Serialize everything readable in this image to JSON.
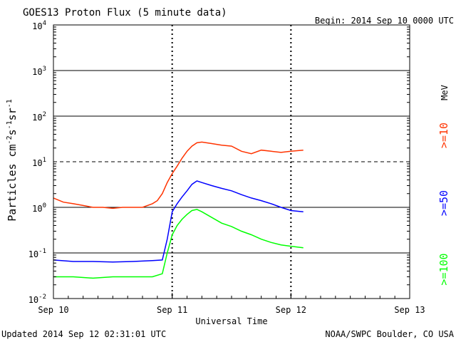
{
  "header": {
    "title": "GOES13 Proton Flux (5 minute data)",
    "begin": "Begin: 2014 Sep 10 0000 UTC"
  },
  "footer": {
    "updated": "Updated 2014 Sep 12 02:31:01 UTC",
    "source": "NOAA/SWPC Boulder, CO USA"
  },
  "colors": {
    "ge10": "#ff3300",
    "ge50": "#0000ff",
    "ge100": "#00ff00",
    "axis": "#000000"
  },
  "chart_data": {
    "type": "line",
    "title": "GOES13 Proton Flux (5 minute data)",
    "xlabel": "Universal Time",
    "ylabel": "Particles cm-2 s-1 sr-1",
    "y_scale": "log",
    "ylim": [
      0.01,
      10000
    ],
    "y_ticks": [
      {
        "value": 0.01,
        "base": "10",
        "exp": "-2"
      },
      {
        "value": 0.1,
        "base": "10",
        "exp": "-1"
      },
      {
        "value": 1,
        "base": "10",
        "exp": "0"
      },
      {
        "value": 10,
        "base": "10",
        "exp": "1"
      },
      {
        "value": 100,
        "base": "10",
        "exp": "2"
      },
      {
        "value": 1000,
        "base": "10",
        "exp": "3"
      },
      {
        "value": 10000,
        "base": "10",
        "exp": "4"
      }
    ],
    "xlim": [
      "2014-09-10 00:00",
      "2014-09-13 00:00"
    ],
    "x_ticks": [
      "Sep 10",
      "Sep 11",
      "Sep 12",
      "Sep 13"
    ],
    "energy_unit": "MeV",
    "series_labels": [
      ">=10",
      ">=50",
      ">=100"
    ],
    "series": [
      {
        "name": ">=10",
        "color": "#ff3300",
        "points": [
          [
            "2014-09-10 00:00",
            1.6
          ],
          [
            "2014-09-10 02:00",
            1.3
          ],
          [
            "2014-09-10 04:00",
            1.2
          ],
          [
            "2014-09-10 06:00",
            1.1
          ],
          [
            "2014-09-10 08:00",
            1.0
          ],
          [
            "2014-09-10 10:00",
            1.0
          ],
          [
            "2014-09-10 12:00",
            0.95
          ],
          [
            "2014-09-10 14:00",
            1.0
          ],
          [
            "2014-09-10 16:00",
            1.0
          ],
          [
            "2014-09-10 18:00",
            1.0
          ],
          [
            "2014-09-10 20:00",
            1.2
          ],
          [
            "2014-09-10 21:00",
            1.4
          ],
          [
            "2014-09-10 22:00",
            2.0
          ],
          [
            "2014-09-10 23:00",
            3.5
          ],
          [
            "2014-09-11 00:00",
            5.5
          ],
          [
            "2014-09-11 01:00",
            8.0
          ],
          [
            "2014-09-11 02:00",
            12
          ],
          [
            "2014-09-11 03:00",
            17
          ],
          [
            "2014-09-11 04:00",
            22
          ],
          [
            "2014-09-11 05:00",
            26
          ],
          [
            "2014-09-11 06:00",
            27
          ],
          [
            "2014-09-11 08:00",
            25
          ],
          [
            "2014-09-11 10:00",
            23
          ],
          [
            "2014-09-11 12:00",
            22
          ],
          [
            "2014-09-11 14:00",
            17
          ],
          [
            "2014-09-11 16:00",
            15
          ],
          [
            "2014-09-11 18:00",
            18
          ],
          [
            "2014-09-11 20:00",
            17
          ],
          [
            "2014-09-11 22:00",
            16
          ],
          [
            "2014-09-12 00:00",
            17
          ],
          [
            "2014-09-12 02:30",
            18
          ]
        ]
      },
      {
        "name": ">=50",
        "color": "#0000ff",
        "points": [
          [
            "2014-09-10 00:00",
            0.07
          ],
          [
            "2014-09-10 04:00",
            0.065
          ],
          [
            "2014-09-10 08:00",
            0.065
          ],
          [
            "2014-09-10 12:00",
            0.063
          ],
          [
            "2014-09-10 16:00",
            0.065
          ],
          [
            "2014-09-10 20:00",
            0.068
          ],
          [
            "2014-09-10 22:00",
            0.07
          ],
          [
            "2014-09-10 23:00",
            0.2
          ],
          [
            "2014-09-11 00:00",
            0.8
          ],
          [
            "2014-09-11 01:00",
            1.2
          ],
          [
            "2014-09-11 02:00",
            1.7
          ],
          [
            "2014-09-11 03:00",
            2.3
          ],
          [
            "2014-09-11 04:00",
            3.2
          ],
          [
            "2014-09-11 05:00",
            3.8
          ],
          [
            "2014-09-11 06:00",
            3.5
          ],
          [
            "2014-09-11 08:00",
            3.0
          ],
          [
            "2014-09-11 10:00",
            2.6
          ],
          [
            "2014-09-11 12:00",
            2.3
          ],
          [
            "2014-09-11 14:00",
            1.9
          ],
          [
            "2014-09-11 16:00",
            1.6
          ],
          [
            "2014-09-11 18:00",
            1.4
          ],
          [
            "2014-09-11 20:00",
            1.2
          ],
          [
            "2014-09-11 22:00",
            1.0
          ],
          [
            "2014-09-12 00:00",
            0.85
          ],
          [
            "2014-09-12 02:30",
            0.8
          ]
        ]
      },
      {
        "name": ">=100",
        "color": "#00ff00",
        "points": [
          [
            "2014-09-10 00:00",
            0.03
          ],
          [
            "2014-09-10 04:00",
            0.03
          ],
          [
            "2014-09-10 08:00",
            0.028
          ],
          [
            "2014-09-10 12:00",
            0.03
          ],
          [
            "2014-09-10 16:00",
            0.03
          ],
          [
            "2014-09-10 20:00",
            0.03
          ],
          [
            "2014-09-10 22:00",
            0.035
          ],
          [
            "2014-09-10 23:00",
            0.1
          ],
          [
            "2014-09-11 00:00",
            0.25
          ],
          [
            "2014-09-11 01:00",
            0.4
          ],
          [
            "2014-09-11 02:00",
            0.55
          ],
          [
            "2014-09-11 03:00",
            0.7
          ],
          [
            "2014-09-11 04:00",
            0.85
          ],
          [
            "2014-09-11 05:00",
            0.9
          ],
          [
            "2014-09-11 06:00",
            0.8
          ],
          [
            "2014-09-11 08:00",
            0.6
          ],
          [
            "2014-09-11 10:00",
            0.45
          ],
          [
            "2014-09-11 12:00",
            0.38
          ],
          [
            "2014-09-11 14:00",
            0.3
          ],
          [
            "2014-09-11 16:00",
            0.25
          ],
          [
            "2014-09-11 18:00",
            0.2
          ],
          [
            "2014-09-11 20:00",
            0.17
          ],
          [
            "2014-09-11 22:00",
            0.15
          ],
          [
            "2014-09-12 00:00",
            0.14
          ],
          [
            "2014-09-12 02:30",
            0.13
          ]
        ]
      }
    ]
  }
}
